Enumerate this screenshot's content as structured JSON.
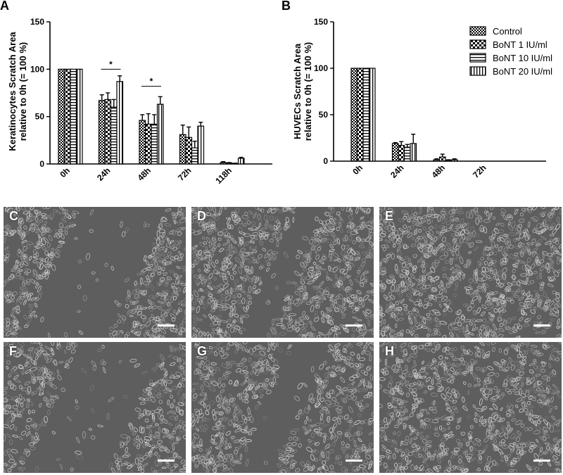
{
  "chart_data": [
    {
      "panel": "A",
      "type": "bar",
      "ylabel_line1": "Keratinocytes Scratch Area",
      "ylabel_line2": "relative to 0h (= 100 %)",
      "categories": [
        "0h",
        "24h",
        "48h",
        "72h",
        "118h"
      ],
      "y_ticks": [
        "0",
        "50",
        "100",
        "150"
      ],
      "ylim": [
        0,
        150
      ],
      "series": [
        {
          "name": "Control",
          "values": [
            100,
            67,
            46,
            31,
            1.5
          ],
          "errors": [
            0,
            6,
            6,
            10,
            1
          ]
        },
        {
          "name": "BoNT 1 IU/ml",
          "values": [
            100,
            68,
            42,
            28,
            1
          ],
          "errors": [
            0,
            7,
            11,
            11,
            0.5
          ]
        },
        {
          "name": "BoNT 10 IU/ml",
          "values": [
            100,
            60,
            42,
            17,
            0.5
          ],
          "errors": [
            0,
            8,
            10,
            7,
            0.3
          ]
        },
        {
          "name": "BoNT 20 IU/ml",
          "values": [
            100,
            87,
            63,
            40,
            6
          ],
          "errors": [
            0,
            6,
            8,
            4,
            1
          ]
        }
      ],
      "annotations": [
        {
          "text": "*",
          "category_from": "24h",
          "y": 100
        },
        {
          "text": "*",
          "category_from": "48h",
          "y": 82
        }
      ],
      "grid": false
    },
    {
      "panel": "B",
      "type": "bar",
      "ylabel_line1": "HUVECs Scratch Area",
      "ylabel_line2": "relative to 0h (= 100 %)",
      "categories": [
        "0h",
        "24h",
        "48h",
        "72h"
      ],
      "y_ticks": [
        "0",
        "50",
        "100",
        "150"
      ],
      "ylim": [
        0,
        150
      ],
      "series": [
        {
          "name": "Control",
          "values": [
            100,
            19,
            1.5,
            0
          ],
          "errors": [
            0,
            1,
            1,
            0
          ]
        },
        {
          "name": "BoNT 1 IU/ml",
          "values": [
            100,
            17,
            4.5,
            0
          ],
          "errors": [
            0,
            4,
            3,
            0
          ]
        },
        {
          "name": "BoNT 10 IU/ml",
          "values": [
            100,
            15,
            1,
            0
          ],
          "errors": [
            0,
            3,
            0.5,
            0
          ]
        },
        {
          "name": "BoNT 20 IU/ml",
          "values": [
            100,
            19,
            1.5,
            0
          ],
          "errors": [
            0,
            10,
            1,
            0
          ]
        }
      ],
      "grid": false
    }
  ],
  "legend": {
    "placement": "top-right",
    "items": [
      "Control",
      "BoNT 1 IU/ml",
      "BoNT 10 IU/ml",
      "BoNT 20 IU/ml"
    ]
  },
  "panel_labels": {
    "a": "A",
    "b": "B"
  },
  "micrographs": [
    {
      "label": "C",
      "density": 1.0,
      "gap": 1.0
    },
    {
      "label": "D",
      "density": 1.0,
      "gap": 0.35
    },
    {
      "label": "E",
      "density": 1.0,
      "gap": 0.1
    },
    {
      "label": "F",
      "density": 0.85,
      "gap": 1.0
    },
    {
      "label": "G",
      "density": 0.85,
      "gap": 0.45
    },
    {
      "label": "H",
      "density": 0.85,
      "gap": 0.05
    }
  ]
}
